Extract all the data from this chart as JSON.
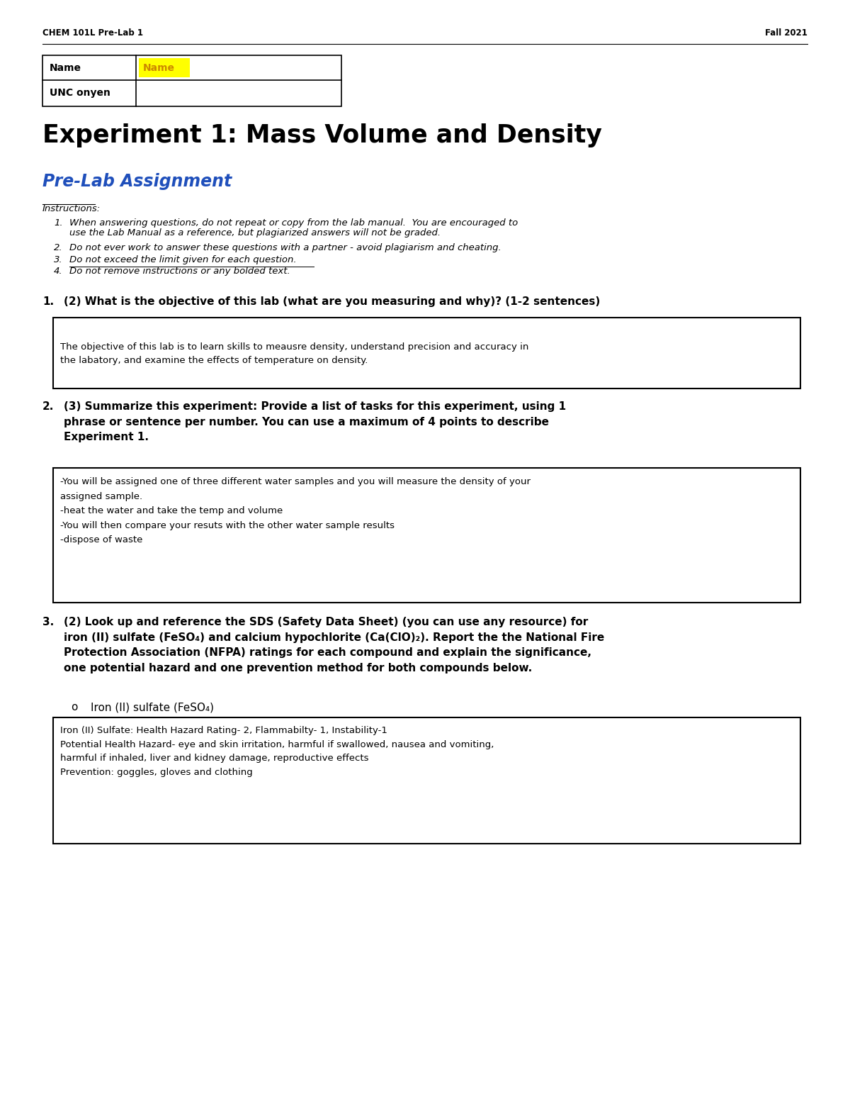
{
  "page_width": 12.0,
  "page_height": 15.53,
  "bg_color": "#ffffff",
  "header_left": "CHEM 101L Pre-Lab 1",
  "header_right": "Fall 2021",
  "table_name_label": "Name",
  "table_name_value": "Name",
  "table_name_highlight": "#FFFF00",
  "table_name_value_color": "#CC8800",
  "table_unc_label": "UNC onyen",
  "title": "Experiment 1: Mass Volume and Density",
  "subtitle": "Pre-Lab Assignment",
  "subtitle_color": "#1F4FBB",
  "instructions_label": "Instructions:",
  "inst1": "When answering questions, do not repeat or copy from the lab manual.  You are encouraged to",
  "inst1b": "use the Lab Manual as a reference, but plagiarized answers will not be graded.",
  "inst2": "Do not ever work to answer these questions with a partner - avoid plagiarism and cheating.",
  "inst3": "Do not exceed the limit given for each question.",
  "inst4": "Do not remove instructions or any bolded text.",
  "q1_num": "1.",
  "q1_text": "(2) What is the objective of this lab (what are you measuring and why)? (1-2 sentences)",
  "q1_answer_line1": "The objective of this lab is to learn skills to meausre density, understand precision and accuracy in",
  "q1_answer_line2": "the labatory, and examine the effects of temperature on density.",
  "q2_num": "2.",
  "q2_text_line1": "(3) Summarize this experiment: Provide a list of tasks for this experiment, using 1",
  "q2_text_line2": "phrase or sentence per number. You can use a maximum of 4 points to describe",
  "q2_text_line3": "Experiment 1.",
  "q2_ans1": "-You will be assigned one of three different water samples and you will measure the density of your",
  "q2_ans2": "assigned sample.",
  "q2_ans3": "-heat the water and take the temp and volume",
  "q2_ans4": "-You will then compare your resuts with the other water sample results",
  "q2_ans5": "-dispose of waste",
  "q3_num": "3.",
  "q3_text_line1": "(2) Look up and reference the SDS (Safety Data Sheet) (you can use any resource) for",
  "q3_text_line2": "iron (II) sulfate (FeSO₄) and calcium hypochlorite (Ca(ClO)₂). Report the the National Fire",
  "q3_text_line3": "Protection Association (NFPA) ratings for each compound and explain the significance,",
  "q3_text_line4": "one potential hazard and one prevention method for both compounds below.",
  "q3_sub_bullet": "o",
  "q3_sub_text": "Iron (II) sulfate (FeSO₄)",
  "q3_ans1": "Iron (II) Sulfate: Health Hazard Rating- 2, Flammabilty- 1, Instability-1",
  "q3_ans2": "Potential Health Hazard- eye and skin irritation, harmful if swallowed, nausea and vomiting,",
  "q3_ans3": "harmful if inhaled, liver and kidney damage, reproductive effects",
  "q3_ans4": "Prevention: goggles, gloves and clothing"
}
